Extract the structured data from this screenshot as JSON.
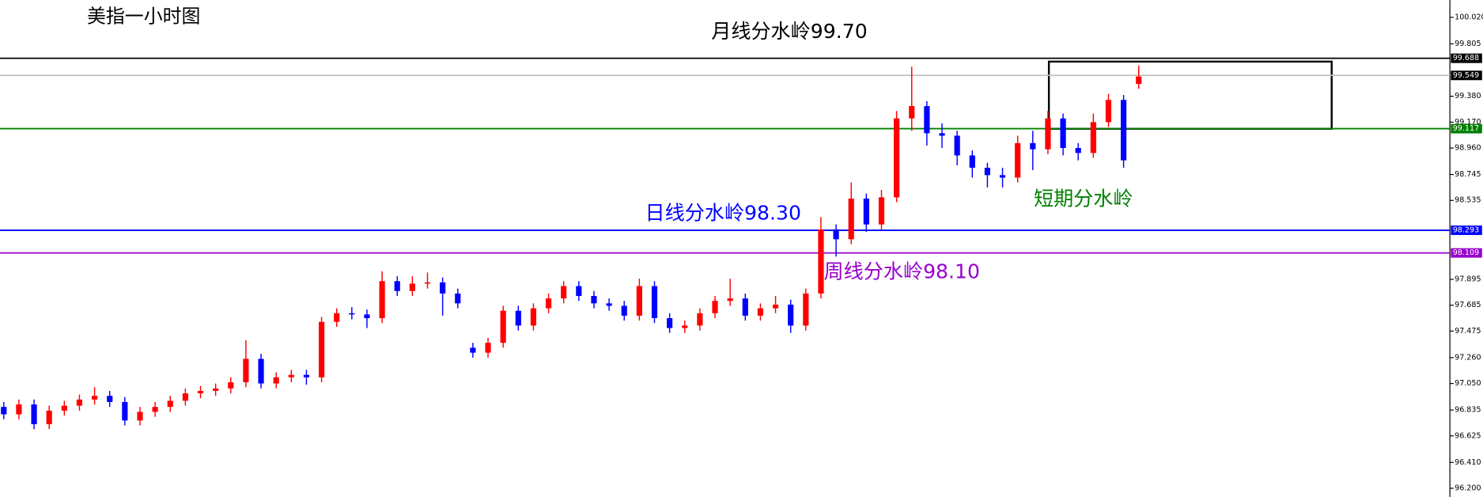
{
  "chart_data": {
    "type": "candlestick",
    "title": "美指一小时图",
    "annotations": [
      {
        "text": "月线分水岭99.70",
        "color": "#000000"
      },
      {
        "text": "日线分水岭98.30",
        "color": "#0000ff"
      },
      {
        "text": "周线分水岭98.10",
        "color": "#9900cc"
      },
      {
        "text": "短期分水岭",
        "color": "#008000"
      }
    ],
    "up_color": "#ff0000",
    "down_color": "#0000ff",
    "ylim": [
      96.13,
      100.16
    ],
    "yticks": [
      {
        "value": 100.02,
        "label": "100.020"
      },
      99.805,
      {
        "value": 99.38,
        "label": "99.380"
      },
      {
        "value": 99.17,
        "label": "99.170"
      },
      {
        "value": 98.96,
        "label": "98.960"
      },
      98.745,
      98.535,
      97.895,
      97.685,
      97.475,
      {
        "value": 97.26,
        "label": "97.260"
      },
      {
        "value": 97.05,
        "label": "97.050"
      },
      96.835,
      96.625,
      {
        "value": 96.41,
        "label": "96.410"
      },
      {
        "value": 96.2,
        "label": "96.200"
      }
    ],
    "levels": [
      {
        "value": 99.688,
        "color": "#000000",
        "label_bg": "#000000"
      },
      {
        "value": 99.549,
        "color": "#c0c0c0",
        "label_bg": "#000000"
      },
      {
        "value": 99.117,
        "color": "#008000",
        "label_bg": "#008000"
      },
      {
        "value": 98.293,
        "color": "#0000ff",
        "label_bg": "#0000ff"
      },
      {
        "value": 98.109,
        "color": "#9900cc",
        "label_bg": "#9900cc"
      }
    ],
    "open": [
      96.86,
      96.8,
      96.88,
      96.72,
      96.83,
      96.87,
      96.92,
      96.95,
      96.9,
      96.75,
      96.82,
      96.86,
      96.91,
      96.97,
      96.99,
      97.01,
      97.06,
      97.25,
      97.05,
      97.1,
      97.12,
      97.1,
      97.55,
      97.62,
      97.61,
      97.58,
      97.88,
      97.8,
      97.86,
      97.87,
      97.78,
      97.34,
      97.3,
      97.38,
      97.64,
      97.52,
      97.66,
      97.74,
      97.84,
      97.76,
      97.7,
      97.68,
      97.6,
      97.84,
      97.58,
      97.5,
      97.52,
      97.62,
      97.72,
      97.74,
      97.6,
      97.66,
      97.69,
      97.52,
      97.78,
      98.3,
      98.22,
      98.55,
      98.34,
      98.56,
      99.2,
      99.3,
      99.08,
      99.06,
      98.9,
      98.8,
      98.74,
      98.72,
      99.0,
      98.95,
      99.2,
      98.96,
      98.92,
      99.17,
      99.35,
      99.48
    ],
    "high": [
      96.9,
      96.92,
      96.92,
      96.87,
      96.91,
      96.96,
      97.02,
      96.99,
      96.94,
      96.86,
      96.9,
      96.95,
      97.01,
      97.03,
      97.05,
      97.1,
      97.4,
      97.29,
      97.14,
      97.16,
      97.16,
      97.59,
      97.66,
      97.67,
      97.65,
      97.96,
      97.92,
      97.92,
      97.95,
      97.91,
      97.82,
      97.38,
      97.42,
      97.68,
      97.68,
      97.7,
      97.78,
      97.88,
      97.88,
      97.8,
      97.74,
      97.72,
      97.9,
      97.88,
      97.62,
      97.56,
      97.66,
      97.76,
      97.9,
      97.78,
      97.7,
      97.76,
      97.73,
      97.82,
      98.4,
      98.34,
      98.68,
      98.59,
      98.62,
      99.26,
      99.62,
      99.34,
      99.16,
      99.1,
      98.94,
      98.84,
      98.8,
      99.06,
      99.1,
      99.26,
      99.24,
      99.0,
      99.24,
      99.4,
      99.39,
      99.63
    ],
    "low": [
      96.76,
      96.76,
      96.68,
      96.68,
      96.79,
      96.83,
      96.88,
      96.86,
      96.71,
      96.71,
      96.78,
      96.82,
      96.87,
      96.93,
      96.95,
      96.97,
      97.02,
      97.01,
      97.01,
      97.06,
      97.04,
      97.06,
      97.51,
      97.57,
      97.5,
      97.54,
      97.76,
      97.76,
      97.82,
      97.6,
      97.66,
      97.26,
      97.26,
      97.34,
      97.48,
      97.48,
      97.62,
      97.7,
      97.72,
      97.66,
      97.64,
      97.56,
      97.56,
      97.54,
      97.46,
      97.46,
      97.48,
      97.58,
      97.68,
      97.56,
      97.56,
      97.62,
      97.46,
      97.48,
      97.74,
      98.08,
      98.18,
      98.28,
      98.3,
      98.52,
      99.1,
      98.98,
      98.96,
      98.82,
      98.72,
      98.64,
      98.64,
      98.68,
      98.78,
      98.91,
      98.9,
      98.86,
      98.88,
      99.13,
      98.8,
      99.44
    ],
    "close": [
      96.8,
      96.88,
      96.72,
      96.83,
      96.87,
      96.92,
      96.95,
      96.9,
      96.75,
      96.82,
      96.86,
      96.91,
      96.97,
      96.99,
      97.01,
      97.06,
      97.25,
      97.05,
      97.1,
      97.12,
      97.1,
      97.55,
      97.62,
      97.61,
      97.58,
      97.88,
      97.8,
      97.86,
      97.87,
      97.78,
      97.7,
      97.3,
      97.38,
      97.64,
      97.52,
      97.66,
      97.74,
      97.84,
      97.76,
      97.7,
      97.68,
      97.6,
      97.84,
      97.58,
      97.5,
      97.52,
      97.62,
      97.72,
      97.74,
      97.6,
      97.66,
      97.69,
      97.52,
      97.78,
      98.3,
      98.22,
      98.55,
      98.34,
      98.56,
      99.2,
      99.3,
      99.08,
      99.06,
      98.9,
      98.8,
      98.74,
      98.72,
      99.0,
      98.95,
      99.2,
      98.96,
      98.92,
      99.17,
      99.35,
      98.86,
      99.54
    ]
  }
}
